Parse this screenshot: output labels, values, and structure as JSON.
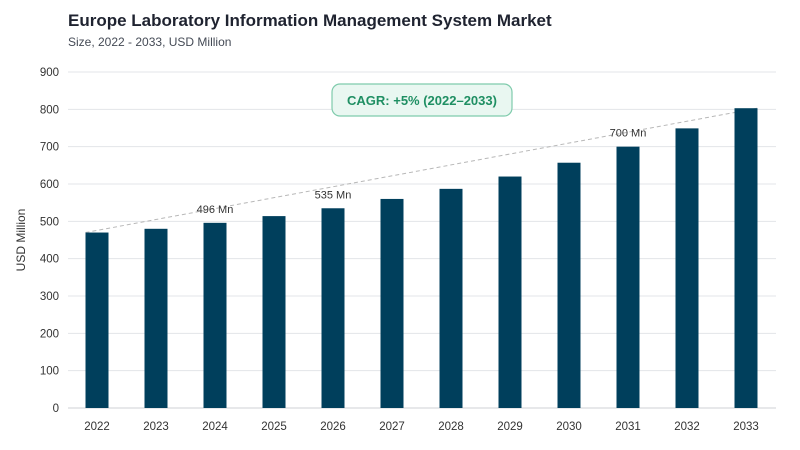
{
  "chart_data": {
    "type": "bar",
    "title": "Europe Laboratory Information Management System Market",
    "subtitle": "Size, 2022 - 2033, USD Million",
    "ylabel": "USD Million",
    "xlabel": "",
    "ylim": [
      0,
      900
    ],
    "yticks": [
      0,
      100,
      200,
      300,
      400,
      500,
      600,
      700,
      800,
      900
    ],
    "grid": true,
    "categories": [
      "2022",
      "2023",
      "2024",
      "2025",
      "2026",
      "2027",
      "2028",
      "2029",
      "2030",
      "2031",
      "2032",
      "2033"
    ],
    "values": [
      470,
      480,
      496,
      514,
      535,
      560,
      587,
      620,
      657,
      700,
      749,
      803
    ],
    "data_labels": [
      {
        "category": "2024",
        "text": "496 Mn"
      },
      {
        "category": "2026",
        "text": "535 Mn"
      },
      {
        "category": "2031",
        "text": "700 Mn"
      }
    ],
    "annotation": {
      "text": "CAGR: +5% (2022–2033)"
    },
    "trend_line": {
      "from": "2022",
      "to": "2033"
    }
  },
  "colors": {
    "bar": "#003f5c",
    "grid": "#e3e5e8",
    "trend": "#b8b8b8",
    "annotation_bg": "#e9f7f1",
    "annotation_border": "#7fcbac",
    "annotation_text": "#1f8f63"
  }
}
